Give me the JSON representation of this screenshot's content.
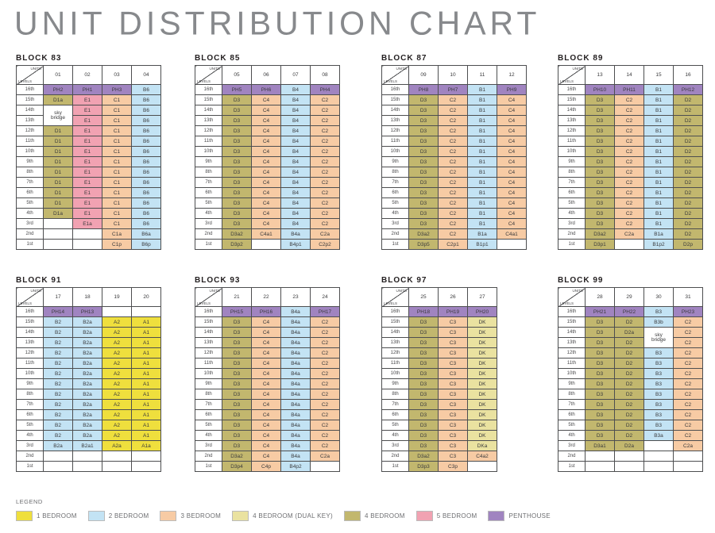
{
  "page": {
    "title": "UNIT DISTRIBUTION CHART"
  },
  "header_cell": {
    "top": "UNITS",
    "bottom": "LEVELS"
  },
  "legend": {
    "label": "LEGEND",
    "items": [
      {
        "label": "1 BEDROOM",
        "type": "1br",
        "color": "#efdf3d"
      },
      {
        "label": "2 BEDROOM",
        "type": "2br",
        "color": "#c3e3f4"
      },
      {
        "label": "3 BEDROOM",
        "type": "3br",
        "color": "#f7cba4"
      },
      {
        "label": "4 BEDROOM (DUAL KEY)",
        "type": "dk",
        "color": "#eae2a0"
      },
      {
        "label": "4 BEDROOM",
        "type": "4br",
        "color": "#c2b76e"
      },
      {
        "label": "5 BEDROOM",
        "type": "5br",
        "color": "#f1a2b2"
      },
      {
        "label": "PENTHOUSE",
        "type": "ph",
        "color": "#a084c0"
      }
    ]
  },
  "chart_data": {
    "type": "table",
    "title": "UNIT DISTRIBUTION CHART",
    "sky_bridge_label": "sky bridge",
    "levels": [
      "16th",
      "15th",
      "14th",
      "13th",
      "12th",
      "11th",
      "10th",
      "9th",
      "8th",
      "7th",
      "6th",
      "5th",
      "4th",
      "3rd",
      "2nd",
      "1st"
    ],
    "unit_type_colors": {
      "1br": "#efdf3d",
      "2br": "#c3e3f4",
      "3br": "#f7cba4",
      "dk": "#eae2a0",
      "4br": "#c2b76e",
      "5br": "#f1a2b2",
      "ph": "#a084c0",
      "empty": "#ffffff"
    },
    "blocks": [
      {
        "name": "BLOCK 83",
        "units": [
          "01",
          "02",
          "03",
          "04"
        ],
        "rows": [
          [
            "PH2",
            "PH1",
            "PH3",
            "B6"
          ],
          [
            "D1a",
            "E1",
            "C1",
            "B6"
          ],
          [
            "SKY",
            "E1",
            "C1",
            "B6"
          ],
          [
            "SKIP",
            "E1",
            "C1",
            "B6"
          ],
          [
            "D1",
            "E1",
            "C1",
            "B6"
          ],
          [
            "D1",
            "E1",
            "C1",
            "B6"
          ],
          [
            "D1",
            "E1",
            "C1",
            "B6"
          ],
          [
            "D1",
            "E1",
            "C1",
            "B6"
          ],
          [
            "D1",
            "E1",
            "C1",
            "B6"
          ],
          [
            "D1",
            "E1",
            "C1",
            "B6"
          ],
          [
            "D1",
            "E1",
            "C1",
            "B6"
          ],
          [
            "D1",
            "E1",
            "C1",
            "B6"
          ],
          [
            "D1a",
            "E1",
            "C1",
            "B6"
          ],
          [
            "",
            "E1a",
            "C1",
            "B6"
          ],
          [
            "",
            "",
            "C1a",
            "B6a"
          ],
          [
            "",
            "",
            "C1p",
            "B6p"
          ]
        ]
      },
      {
        "name": "BLOCK 85",
        "units": [
          "05",
          "06",
          "07",
          "08"
        ],
        "rows": [
          [
            "PH5",
            "PH6",
            "B4",
            "PH4"
          ],
          [
            "D3",
            "C4",
            "B4",
            "C2"
          ],
          [
            "D3",
            "C4",
            "B4",
            "C2"
          ],
          [
            "D3",
            "C4",
            "B4",
            "C2"
          ],
          [
            "D3",
            "C4",
            "B4",
            "C2"
          ],
          [
            "D3",
            "C4",
            "B4",
            "C2"
          ],
          [
            "D3",
            "C4",
            "B4",
            "C2"
          ],
          [
            "D3",
            "C4",
            "B4",
            "C2"
          ],
          [
            "D3",
            "C4",
            "B4",
            "C2"
          ],
          [
            "D3",
            "C4",
            "B4",
            "C2"
          ],
          [
            "D3",
            "C4",
            "B4",
            "C2"
          ],
          [
            "D3",
            "C4",
            "B4",
            "C2"
          ],
          [
            "D3",
            "C4",
            "B4",
            "C2"
          ],
          [
            "D3",
            "C4",
            "B4",
            "C2"
          ],
          [
            "D3a2",
            "C4a1",
            "B4a",
            "C2a"
          ],
          [
            "D3p2",
            "",
            "B4p1",
            "C2p2"
          ]
        ]
      },
      {
        "name": "BLOCK 87",
        "units": [
          "09",
          "10",
          "11",
          "12"
        ],
        "rows": [
          [
            "PH8",
            "PH7",
            "B1",
            "PH9"
          ],
          [
            "D3",
            "C2",
            "B1",
            "C4"
          ],
          [
            "D3",
            "C2",
            "B1",
            "C4"
          ],
          [
            "D3",
            "C2",
            "B1",
            "C4"
          ],
          [
            "D3",
            "C2",
            "B1",
            "C4"
          ],
          [
            "D3",
            "C2",
            "B1",
            "C4"
          ],
          [
            "D3",
            "C2",
            "B1",
            "C4"
          ],
          [
            "D3",
            "C2",
            "B1",
            "C4"
          ],
          [
            "D3",
            "C2",
            "B1",
            "C4"
          ],
          [
            "D3",
            "C2",
            "B1",
            "C4"
          ],
          [
            "D3",
            "C2",
            "B1",
            "C4"
          ],
          [
            "D3",
            "C2",
            "B1",
            "C4"
          ],
          [
            "D3",
            "C2",
            "B1",
            "C4"
          ],
          [
            "D3",
            "C2",
            "B1",
            "C4"
          ],
          [
            "D3a2",
            "C2",
            "B1a",
            "C4a1"
          ],
          [
            "D3p5",
            "C2p1",
            "B1p1",
            ""
          ]
        ]
      },
      {
        "name": "BLOCK 89",
        "units": [
          "13",
          "14",
          "15",
          "16"
        ],
        "rows": [
          [
            "PH10",
            "PH11",
            "B1",
            "PH12"
          ],
          [
            "D3",
            "C2",
            "B1",
            "D2"
          ],
          [
            "D3",
            "C2",
            "B1",
            "D2"
          ],
          [
            "D3",
            "C2",
            "B1",
            "D2"
          ],
          [
            "D3",
            "C2",
            "B1",
            "D2"
          ],
          [
            "D3",
            "C2",
            "B1",
            "D2"
          ],
          [
            "D3",
            "C2",
            "B1",
            "D2"
          ],
          [
            "D3",
            "C2",
            "B1",
            "D2"
          ],
          [
            "D3",
            "C2",
            "B1",
            "D2"
          ],
          [
            "D3",
            "C2",
            "B1",
            "D2"
          ],
          [
            "D3",
            "C2",
            "B1",
            "D2"
          ],
          [
            "D3",
            "C2",
            "B1",
            "D2"
          ],
          [
            "D3",
            "C2",
            "B1",
            "D2"
          ],
          [
            "D3",
            "C2",
            "B1",
            "D2"
          ],
          [
            "D3a2",
            "C2a",
            "B1a",
            "D2"
          ],
          [
            "D3p1",
            "",
            "B1p2",
            "D2p"
          ]
        ]
      },
      {
        "name": "BLOCK 91",
        "units": [
          "17",
          "18",
          "19",
          "20"
        ],
        "rows": [
          [
            "PH14",
            "PH13",
            "",
            ""
          ],
          [
            "B2",
            "B2a",
            "A2",
            "A1"
          ],
          [
            "B2",
            "B2a",
            "A2",
            "A1"
          ],
          [
            "B2",
            "B2a",
            "A2",
            "A1"
          ],
          [
            "B2",
            "B2a",
            "A2",
            "A1"
          ],
          [
            "B2",
            "B2a",
            "A2",
            "A1"
          ],
          [
            "B2",
            "B2a",
            "A2",
            "A1"
          ],
          [
            "B2",
            "B2a",
            "A2",
            "A1"
          ],
          [
            "B2",
            "B2a",
            "A2",
            "A1"
          ],
          [
            "B2",
            "B2a",
            "A2",
            "A1"
          ],
          [
            "B2",
            "B2a",
            "A2",
            "A1"
          ],
          [
            "B2",
            "B2a",
            "A2",
            "A1"
          ],
          [
            "B2",
            "B2a",
            "A2",
            "A1"
          ],
          [
            "B2a",
            "B2a1",
            "A2a",
            "A1a"
          ],
          [
            "",
            "",
            "",
            ""
          ],
          [
            "",
            "",
            "",
            ""
          ]
        ]
      },
      {
        "name": "BLOCK 93",
        "units": [
          "21",
          "22",
          "23",
          "24"
        ],
        "rows": [
          [
            "PH15",
            "PH16",
            "B4a",
            "PH17"
          ],
          [
            "D3",
            "C4",
            "B4a",
            "C2"
          ],
          [
            "D3",
            "C4",
            "B4a",
            "C2"
          ],
          [
            "D3",
            "C4",
            "B4a",
            "C2"
          ],
          [
            "D3",
            "C4",
            "B4a",
            "C2"
          ],
          [
            "D3",
            "C4",
            "B4a",
            "C2"
          ],
          [
            "D3",
            "C4",
            "B4a",
            "C2"
          ],
          [
            "D3",
            "C4",
            "B4a",
            "C2"
          ],
          [
            "D3",
            "C4",
            "B4a",
            "C2"
          ],
          [
            "D3",
            "C4",
            "B4a",
            "C2"
          ],
          [
            "D3",
            "C4",
            "B4a",
            "C2"
          ],
          [
            "D3",
            "C4",
            "B4a",
            "C2"
          ],
          [
            "D3",
            "C4",
            "B4a",
            "C2"
          ],
          [
            "D3",
            "C4",
            "B4a",
            "C2"
          ],
          [
            "D3a2",
            "C4",
            "B4a",
            "C2a"
          ],
          [
            "D3p4",
            "C4p",
            "B4p2",
            ""
          ]
        ]
      },
      {
        "name": "BLOCK 97",
        "units": [
          "25",
          "26",
          "27"
        ],
        "rows": [
          [
            "PH18",
            "PH19",
            "PH20"
          ],
          [
            "D3",
            "C3",
            "DK"
          ],
          [
            "D3",
            "C3",
            "DK"
          ],
          [
            "D3",
            "C3",
            "DK"
          ],
          [
            "D3",
            "C3",
            "DK"
          ],
          [
            "D3",
            "C3",
            "DK"
          ],
          [
            "D3",
            "C3",
            "DK"
          ],
          [
            "D3",
            "C3",
            "DK"
          ],
          [
            "D3",
            "C3",
            "DK"
          ],
          [
            "D3",
            "C3",
            "DK"
          ],
          [
            "D3",
            "C3",
            "DK"
          ],
          [
            "D3",
            "C3",
            "DK"
          ],
          [
            "D3",
            "C3",
            "DK"
          ],
          [
            "D3",
            "C3",
            "DKa"
          ],
          [
            "D3a2",
            "C3",
            "C4a2"
          ],
          [
            "D3p3",
            "C3p",
            ""
          ]
        ]
      },
      {
        "name": "BLOCK 99",
        "units": [
          "28",
          "29",
          "30",
          "31"
        ],
        "rows": [
          [
            "PH21",
            "PH22",
            "B3",
            "PH23"
          ],
          [
            "D3",
            "D2",
            "B3b",
            "C2"
          ],
          [
            "D3",
            "D2a",
            "SKY",
            "C2"
          ],
          [
            "D3",
            "D2",
            "SKIP",
            "C2"
          ],
          [
            "D3",
            "D2",
            "B3",
            "C2"
          ],
          [
            "D3",
            "D2",
            "B3",
            "C2"
          ],
          [
            "D3",
            "D2",
            "B3",
            "C2"
          ],
          [
            "D3",
            "D2",
            "B3",
            "C2"
          ],
          [
            "D3",
            "D2",
            "B3",
            "C2"
          ],
          [
            "D3",
            "D2",
            "B3",
            "C2"
          ],
          [
            "D3",
            "D2",
            "B3",
            "C2"
          ],
          [
            "D3",
            "D2",
            "B3",
            "C2"
          ],
          [
            "D3",
            "D2",
            "B3a",
            "C2"
          ],
          [
            "D3a1",
            "D2a",
            "",
            "C2a"
          ],
          [
            "",
            "",
            "",
            ""
          ],
          [
            "",
            "",
            "",
            ""
          ]
        ]
      }
    ]
  }
}
